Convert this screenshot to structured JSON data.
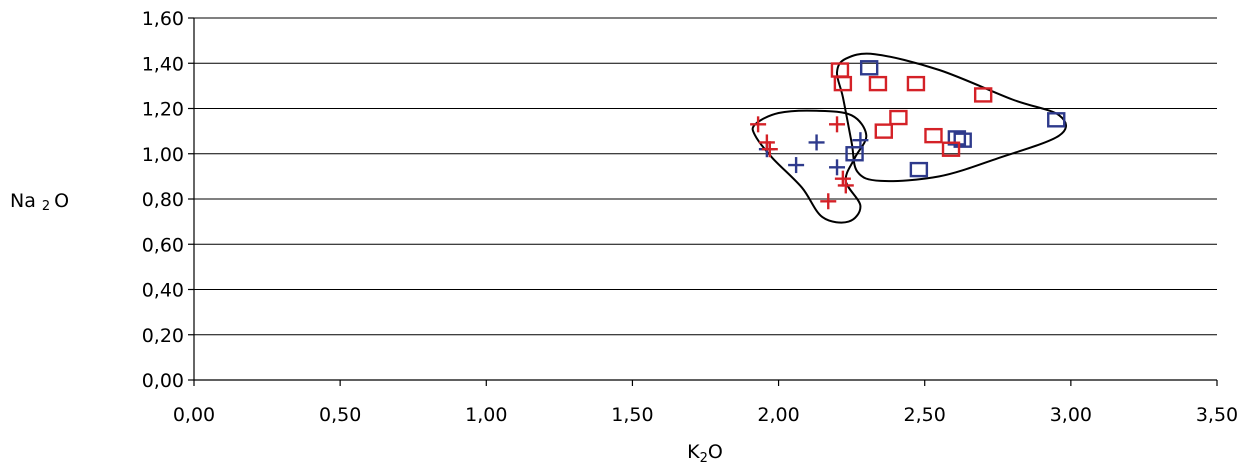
{
  "chart_data": {
    "type": "scatter",
    "title": "",
    "xlabel_main": "K",
    "xlabel_sub": "2",
    "xlabel_tail": "O",
    "ylabel_main": "Na",
    "ylabel_sub": "2",
    "ylabel_tail": "O",
    "xlim": [
      0,
      3.5
    ],
    "ylim": [
      0,
      1.6
    ],
    "x_ticks": [
      "0,00",
      "0,50",
      "1,00",
      "1,50",
      "2,00",
      "2,50",
      "3,00",
      "3,50"
    ],
    "y_ticks": [
      "0,00",
      "0,20",
      "0,40",
      "0,60",
      "0,80",
      "1,00",
      "1,20",
      "1,40",
      "1,60"
    ],
    "grid": "horizontal",
    "legend": "none",
    "series": [
      {
        "marker": "square",
        "color": "#2e3a8c",
        "points": [
          [
            2.31,
            1.38
          ],
          [
            2.26,
            1.0
          ],
          [
            2.48,
            0.93
          ],
          [
            2.61,
            1.07
          ],
          [
            2.63,
            1.06
          ],
          [
            2.95,
            1.15
          ]
        ]
      },
      {
        "marker": "square",
        "color": "#d42127",
        "points": [
          [
            2.21,
            1.37
          ],
          [
            2.22,
            1.31
          ],
          [
            2.34,
            1.31
          ],
          [
            2.47,
            1.31
          ],
          [
            2.7,
            1.26
          ],
          [
            2.41,
            1.16
          ],
          [
            2.36,
            1.1
          ],
          [
            2.53,
            1.08
          ],
          [
            2.59,
            1.02
          ]
        ]
      },
      {
        "marker": "plus",
        "color": "#2e3a8c",
        "points": [
          [
            1.96,
            1.02
          ],
          [
            2.13,
            1.05
          ],
          [
            2.28,
            1.06
          ],
          [
            2.06,
            0.95
          ],
          [
            2.2,
            0.94
          ]
        ]
      },
      {
        "marker": "plus",
        "color": "#d42127",
        "points": [
          [
            1.93,
            1.13
          ],
          [
            1.96,
            1.05
          ],
          [
            1.97,
            1.02
          ],
          [
            2.2,
            1.13
          ],
          [
            2.22,
            0.89
          ],
          [
            2.23,
            0.86
          ],
          [
            2.17,
            0.79
          ]
        ]
      }
    ],
    "group_outlines": [
      [
        [
          1.92,
          1.13
        ],
        [
          2.0,
          1.18
        ],
        [
          2.13,
          1.19
        ],
        [
          2.25,
          1.17
        ],
        [
          2.3,
          1.08
        ],
        [
          2.26,
          0.98
        ],
        [
          2.23,
          0.88
        ],
        [
          2.28,
          0.77
        ],
        [
          2.24,
          0.7
        ],
        [
          2.15,
          0.72
        ],
        [
          2.08,
          0.85
        ],
        [
          1.98,
          0.98
        ],
        [
          1.92,
          1.08
        ]
      ],
      [
        [
          2.23,
          1.42
        ],
        [
          2.33,
          1.44
        ],
        [
          2.55,
          1.37
        ],
        [
          2.8,
          1.24
        ],
        [
          2.96,
          1.17
        ],
        [
          2.96,
          1.08
        ],
        [
          2.75,
          0.98
        ],
        [
          2.55,
          0.9
        ],
        [
          2.35,
          0.88
        ],
        [
          2.27,
          0.92
        ],
        [
          2.25,
          1.05
        ],
        [
          2.22,
          1.25
        ],
        [
          2.2,
          1.36
        ]
      ]
    ]
  }
}
